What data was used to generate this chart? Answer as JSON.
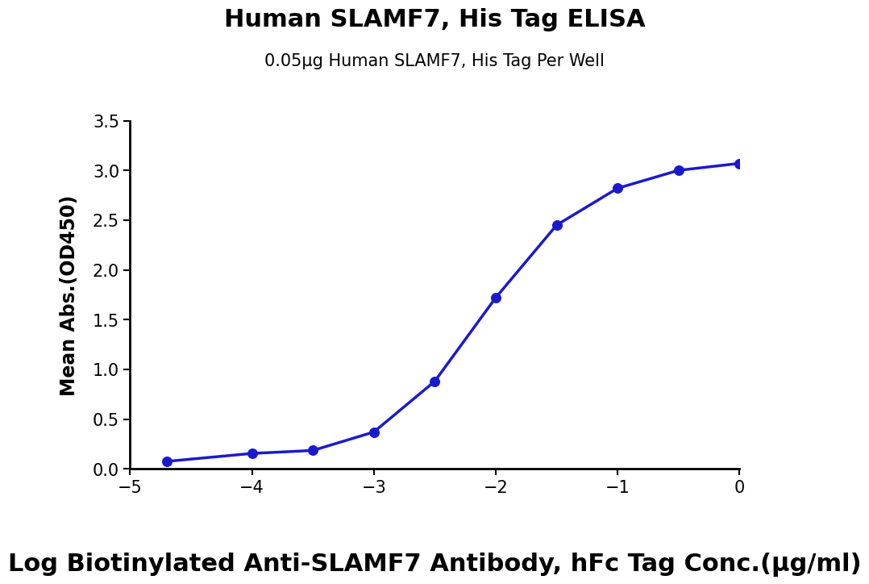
{
  "title": "Human SLAMF7, His Tag ELISA",
  "subtitle": "0.05μg Human SLAMF7, His Tag Per Well",
  "xlabel": "Log Biotinylated Anti-SLAMF7 Antibody, hFc Tag Conc.(μg/ml)",
  "ylabel": "Mean Abs.(OD450)",
  "x_data": [
    -4.699,
    -4.0,
    -3.5,
    -3.0,
    -2.5,
    -2.0,
    -1.5,
    -1.0,
    -0.5,
    0.0
  ],
  "y_data": [
    0.075,
    0.155,
    0.185,
    0.37,
    0.88,
    1.72,
    2.45,
    2.82,
    3.0,
    3.07
  ],
  "xlim": [
    -5,
    0
  ],
  "ylim": [
    0.0,
    3.5
  ],
  "xticks": [
    -5,
    -4,
    -3,
    -2,
    -1,
    0
  ],
  "yticks": [
    0.0,
    0.5,
    1.0,
    1.5,
    2.0,
    2.5,
    3.0,
    3.5
  ],
  "line_color": "#1a1acd",
  "marker_color": "#1a1acd",
  "title_fontsize": 22,
  "subtitle_fontsize": 15,
  "xlabel_fontsize": 22,
  "ylabel_fontsize": 17,
  "tick_fontsize": 15,
  "background_color": "#ffffff",
  "plot_bg_color": "#ffffff"
}
